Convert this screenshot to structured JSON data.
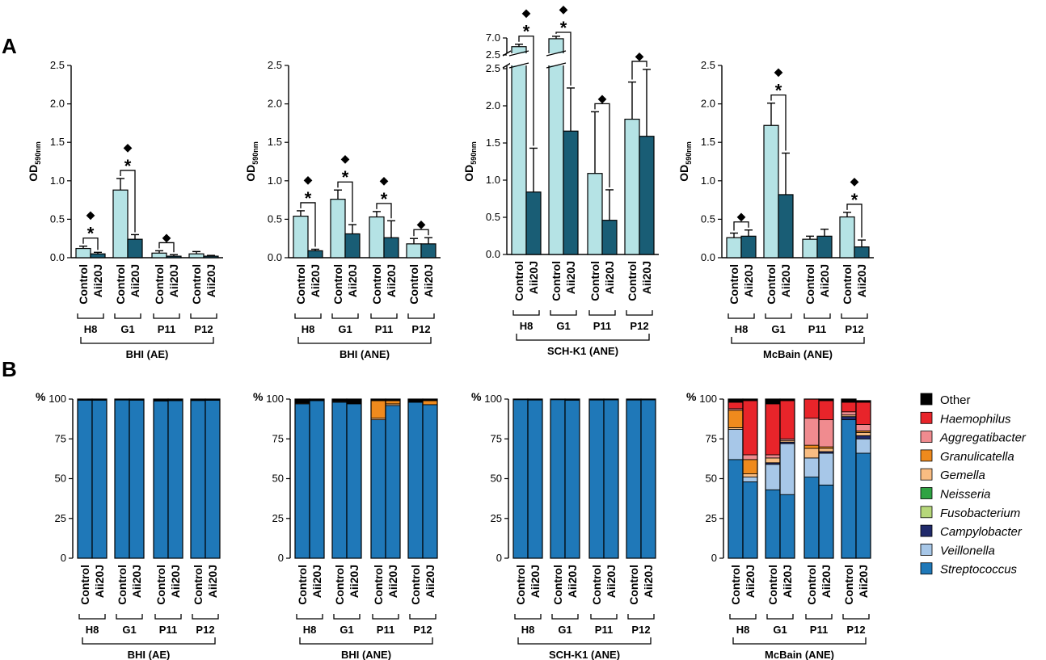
{
  "panel_labels": [
    "A",
    "B"
  ],
  "chart_data": [
    {
      "type": "bar",
      "panel": "A",
      "title": "BHI (AE)",
      "ylabel": "OD",
      "ylabel_sub": "590nm",
      "ylim": [
        0,
        2.5
      ],
      "yticks": [
        "0.0",
        "0.5",
        "1.0",
        "1.5",
        "2.0",
        "2.5"
      ],
      "groups": [
        "H8",
        "G1",
        "P11",
        "P12"
      ],
      "conditions": [
        "Control",
        "Aii20J"
      ],
      "series": [
        {
          "name": "Control",
          "values": [
            0.12,
            0.88,
            0.06,
            0.05
          ],
          "errors": [
            0.03,
            0.15,
            0.03,
            0.03
          ]
        },
        {
          "name": "Aii20J",
          "values": [
            0.05,
            0.24,
            0.02,
            0.02
          ],
          "errors": [
            0.02,
            0.06,
            0.02,
            0.01
          ]
        }
      ],
      "brackets": [
        {
          "group": "H8",
          "marks": "◆*"
        },
        {
          "group": "G1",
          "marks": "◆*"
        },
        {
          "group": "P11",
          "marks": "◆"
        }
      ]
    },
    {
      "type": "bar",
      "panel": "A",
      "title": "BHI (ANE)",
      "ylabel": "OD",
      "ylabel_sub": "590nm",
      "ylim": [
        0,
        2.5
      ],
      "yticks": [
        "0.0",
        "0.5",
        "1.0",
        "1.5",
        "2.0",
        "2.5"
      ],
      "groups": [
        "H8",
        "G1",
        "P11",
        "P12"
      ],
      "conditions": [
        "Control",
        "Aii20J"
      ],
      "series": [
        {
          "name": "Control",
          "values": [
            0.54,
            0.76,
            0.53,
            0.18
          ],
          "errors": [
            0.07,
            0.12,
            0.07,
            0.07
          ]
        },
        {
          "name": "Aii20J",
          "values": [
            0.09,
            0.31,
            0.26,
            0.18
          ],
          "errors": [
            0.02,
            0.12,
            0.22,
            0.08
          ]
        }
      ],
      "brackets": [
        {
          "group": "H8",
          "marks": "◆*"
        },
        {
          "group": "G1",
          "marks": "◆*"
        },
        {
          "group": "P11",
          "marks": "◆*"
        },
        {
          "group": "P12",
          "marks": "◆"
        }
      ]
    },
    {
      "type": "bar",
      "panel": "A",
      "title": "SCH-K1 (ANE)",
      "ylabel": "OD",
      "ylabel_sub": "590nm",
      "ylim": [
        0,
        2.5
      ],
      "y_break": {
        "upper_ticks": [
          "2.5",
          "7.0"
        ],
        "upper_range": [
          2.5,
          7.0
        ]
      },
      "yticks": [
        "0.0",
        "0.5",
        "1.0",
        "1.5",
        "2.0",
        "2.5"
      ],
      "groups": [
        "H8",
        "G1",
        "P11",
        "P12"
      ],
      "conditions": [
        "Control",
        "Aii20J"
      ],
      "series": [
        {
          "name": "Control",
          "values": [
            4.7,
            6.8,
            1.09,
            1.82
          ],
          "errors": [
            0.2,
            0.15,
            0.83,
            0.5
          ]
        },
        {
          "name": "Aii20J",
          "values": [
            0.84,
            1.66,
            0.46,
            1.59
          ],
          "errors": [
            0.59,
            0.58,
            0.41,
            0.9
          ]
        }
      ],
      "brackets": [
        {
          "group": "H8",
          "marks": "◆*"
        },
        {
          "group": "G1",
          "marks": "◆*"
        },
        {
          "group": "P11",
          "marks": "◆"
        },
        {
          "group": "P12",
          "marks": "◆"
        }
      ]
    },
    {
      "type": "bar",
      "panel": "A",
      "title": "McBain (ANE)",
      "ylabel": "OD",
      "ylabel_sub": "590nm",
      "ylim": [
        0,
        2.5
      ],
      "yticks": [
        "0.0",
        "0.5",
        "1.0",
        "1.5",
        "2.0",
        "2.5"
      ],
      "groups": [
        "H8",
        "G1",
        "P11",
        "P12"
      ],
      "conditions": [
        "Control",
        "Aii20J"
      ],
      "series": [
        {
          "name": "Control",
          "values": [
            0.26,
            1.72,
            0.24,
            0.53
          ],
          "errors": [
            0.06,
            0.29,
            0.04,
            0.06
          ]
        },
        {
          "name": "Aii20J",
          "values": [
            0.28,
            0.82,
            0.28,
            0.14
          ],
          "errors": [
            0.08,
            0.54,
            0.09,
            0.09
          ]
        }
      ],
      "brackets": [
        {
          "group": "H8",
          "marks": "◆"
        },
        {
          "group": "G1",
          "marks": "◆*"
        },
        {
          "group": "P12",
          "marks": "◆*"
        }
      ]
    },
    {
      "type": "stacked_bar",
      "panel": "B",
      "title": "BHI (AE)",
      "ylabel": "%",
      "ylim": [
        0,
        100
      ],
      "yticks": [
        "0",
        "25",
        "50",
        "75",
        "100"
      ],
      "groups": [
        "H8",
        "G1",
        "P11",
        "P12"
      ],
      "conditions": [
        "Control",
        "Aii20J"
      ],
      "bars": [
        {
          "Streptococcus": 99.3,
          "Other": 0.7
        },
        {
          "Streptococcus": 99.3,
          "Other": 0.7
        },
        {
          "Streptococcus": 99.4,
          "Other": 0.6
        },
        {
          "Streptococcus": 99.3,
          "Other": 0.7
        },
        {
          "Streptococcus": 98.8,
          "Other": 1.2
        },
        {
          "Streptococcus": 99.0,
          "Other": 1.0
        },
        {
          "Streptococcus": 99.1,
          "Other": 0.9
        },
        {
          "Streptococcus": 99.2,
          "Other": 0.8
        }
      ]
    },
    {
      "type": "stacked_bar",
      "panel": "B",
      "title": "BHI (ANE)",
      "ylabel": "%",
      "ylim": [
        0,
        100
      ],
      "yticks": [
        "0",
        "25",
        "50",
        "75",
        "100"
      ],
      "groups": [
        "H8",
        "G1",
        "P11",
        "P12"
      ],
      "conditions": [
        "Control",
        "Aii20J"
      ],
      "bars": [
        {
          "Streptococcus": 97.0,
          "Gemella": 0.5,
          "Other": 2.5
        },
        {
          "Streptococcus": 99.0,
          "Other": 1.0
        },
        {
          "Streptococcus": 98.0,
          "Gemella": 0.5,
          "Other": 1.5
        },
        {
          "Streptococcus": 97.0,
          "Other": 3.0
        },
        {
          "Streptococcus": 87.0,
          "Granulicatella": 11.0,
          "Gemella": 1.0,
          "Other": 1.0
        },
        {
          "Streptococcus": 96.0,
          "Granulicatella": 2.0,
          "Gemella": 1.0,
          "Other": 1.0
        },
        {
          "Streptococcus": 98.0,
          "Other": 2.0
        },
        {
          "Streptococcus": 96.5,
          "Granulicatella": 2.5,
          "Other": 1.0
        }
      ]
    },
    {
      "type": "stacked_bar",
      "panel": "B",
      "title": "SCH-K1 (ANE)",
      "ylabel": "%",
      "ylim": [
        0,
        100
      ],
      "yticks": [
        "0",
        "25",
        "50",
        "75",
        "100"
      ],
      "groups": [
        "H8",
        "G1",
        "P11",
        "P12"
      ],
      "conditions": [
        "Control",
        "Aii20J"
      ],
      "bars": [
        {
          "Streptococcus": 99.6,
          "Other": 0.4
        },
        {
          "Streptococcus": 99.4,
          "Other": 0.6
        },
        {
          "Streptococcus": 99.6,
          "Other": 0.4
        },
        {
          "Streptococcus": 99.3,
          "Other": 0.7
        },
        {
          "Streptococcus": 99.4,
          "Other": 0.6
        },
        {
          "Streptococcus": 99.5,
          "Other": 0.5
        },
        {
          "Streptococcus": 99.4,
          "Other": 0.6
        },
        {
          "Streptococcus": 99.5,
          "Other": 0.5
        }
      ]
    },
    {
      "type": "stacked_bar",
      "panel": "B",
      "title": "McBain (ANE)",
      "ylabel": "%",
      "ylim": [
        0,
        100
      ],
      "yticks": [
        "0",
        "25",
        "50",
        "75",
        "100"
      ],
      "groups": [
        "H8",
        "G1",
        "P11",
        "P12"
      ],
      "conditions": [
        "Control",
        "Aii20J"
      ],
      "bars": [
        {
          "Streptococcus": 62,
          "Veillonella": 19,
          "Gemella": 1,
          "Granulicatella": 11,
          "Aggregatibacter": 1,
          "Haemophilus": 4,
          "Other": 2
        },
        {
          "Streptococcus": 48,
          "Veillonella": 3,
          "Gemella": 2,
          "Granulicatella": 9,
          "Aggregatibacter": 3,
          "Haemophilus": 34,
          "Other": 1
        },
        {
          "Streptococcus": 43,
          "Veillonella": 16,
          "Campylobacter": 1,
          "Gemella": 3,
          "Aggregatibacter": 2,
          "Haemophilus": 32,
          "Other": 3
        },
        {
          "Streptococcus": 40,
          "Veillonella": 32,
          "Campylobacter": 1,
          "Gemella": 1,
          "Aggregatibacter": 1,
          "Haemophilus": 24,
          "Other": 1
        },
        {
          "Streptococcus": 51,
          "Veillonella": 12,
          "Gemella": 6,
          "Granulicatella": 2,
          "Aggregatibacter": 17,
          "Haemophilus": 12
        },
        {
          "Streptococcus": 46,
          "Veillonella": 20,
          "Campylobacter": 1,
          "Gemella": 2,
          "Granulicatella": 1,
          "Aggregatibacter": 17,
          "Haemophilus": 12,
          "Other": 1
        },
        {
          "Streptococcus": 87,
          "Campylobacter": 2,
          "Gemella": 1,
          "Aggregatibacter": 2,
          "Haemophilus": 6,
          "Other": 2
        },
        {
          "Streptococcus": 66,
          "Veillonella": 9,
          "Campylobacter": 2,
          "Gemella": 2,
          "Granulicatella": 1,
          "Aggregatibacter": 4,
          "Haemophilus": 14,
          "Other": 1
        }
      ]
    }
  ],
  "legend": [
    {
      "name": "Other",
      "color": "#000000",
      "italic": false
    },
    {
      "name": "Haemophilus",
      "color": "#e8242a",
      "italic": true
    },
    {
      "name": "Aggregatibacter",
      "color": "#f08b8f",
      "italic": true
    },
    {
      "name": "Granulicatella",
      "color": "#ef8a1d",
      "italic": true
    },
    {
      "name": "Gemella",
      "color": "#f9bd82",
      "italic": true
    },
    {
      "name": "Neisseria",
      "color": "#2fa343",
      "italic": true
    },
    {
      "name": "Fusobacterium",
      "color": "#b6d77a",
      "italic": true
    },
    {
      "name": "Campylobacter",
      "color": "#202a6b",
      "italic": true
    },
    {
      "name": "Veillonella",
      "color": "#a7c7e8",
      "italic": true
    },
    {
      "name": "Streptococcus",
      "color": "#1f78b8",
      "italic": true
    }
  ],
  "colors": {
    "control": "#b5e3e5",
    "aii20j": "#195d75",
    "axis": "#000000"
  }
}
